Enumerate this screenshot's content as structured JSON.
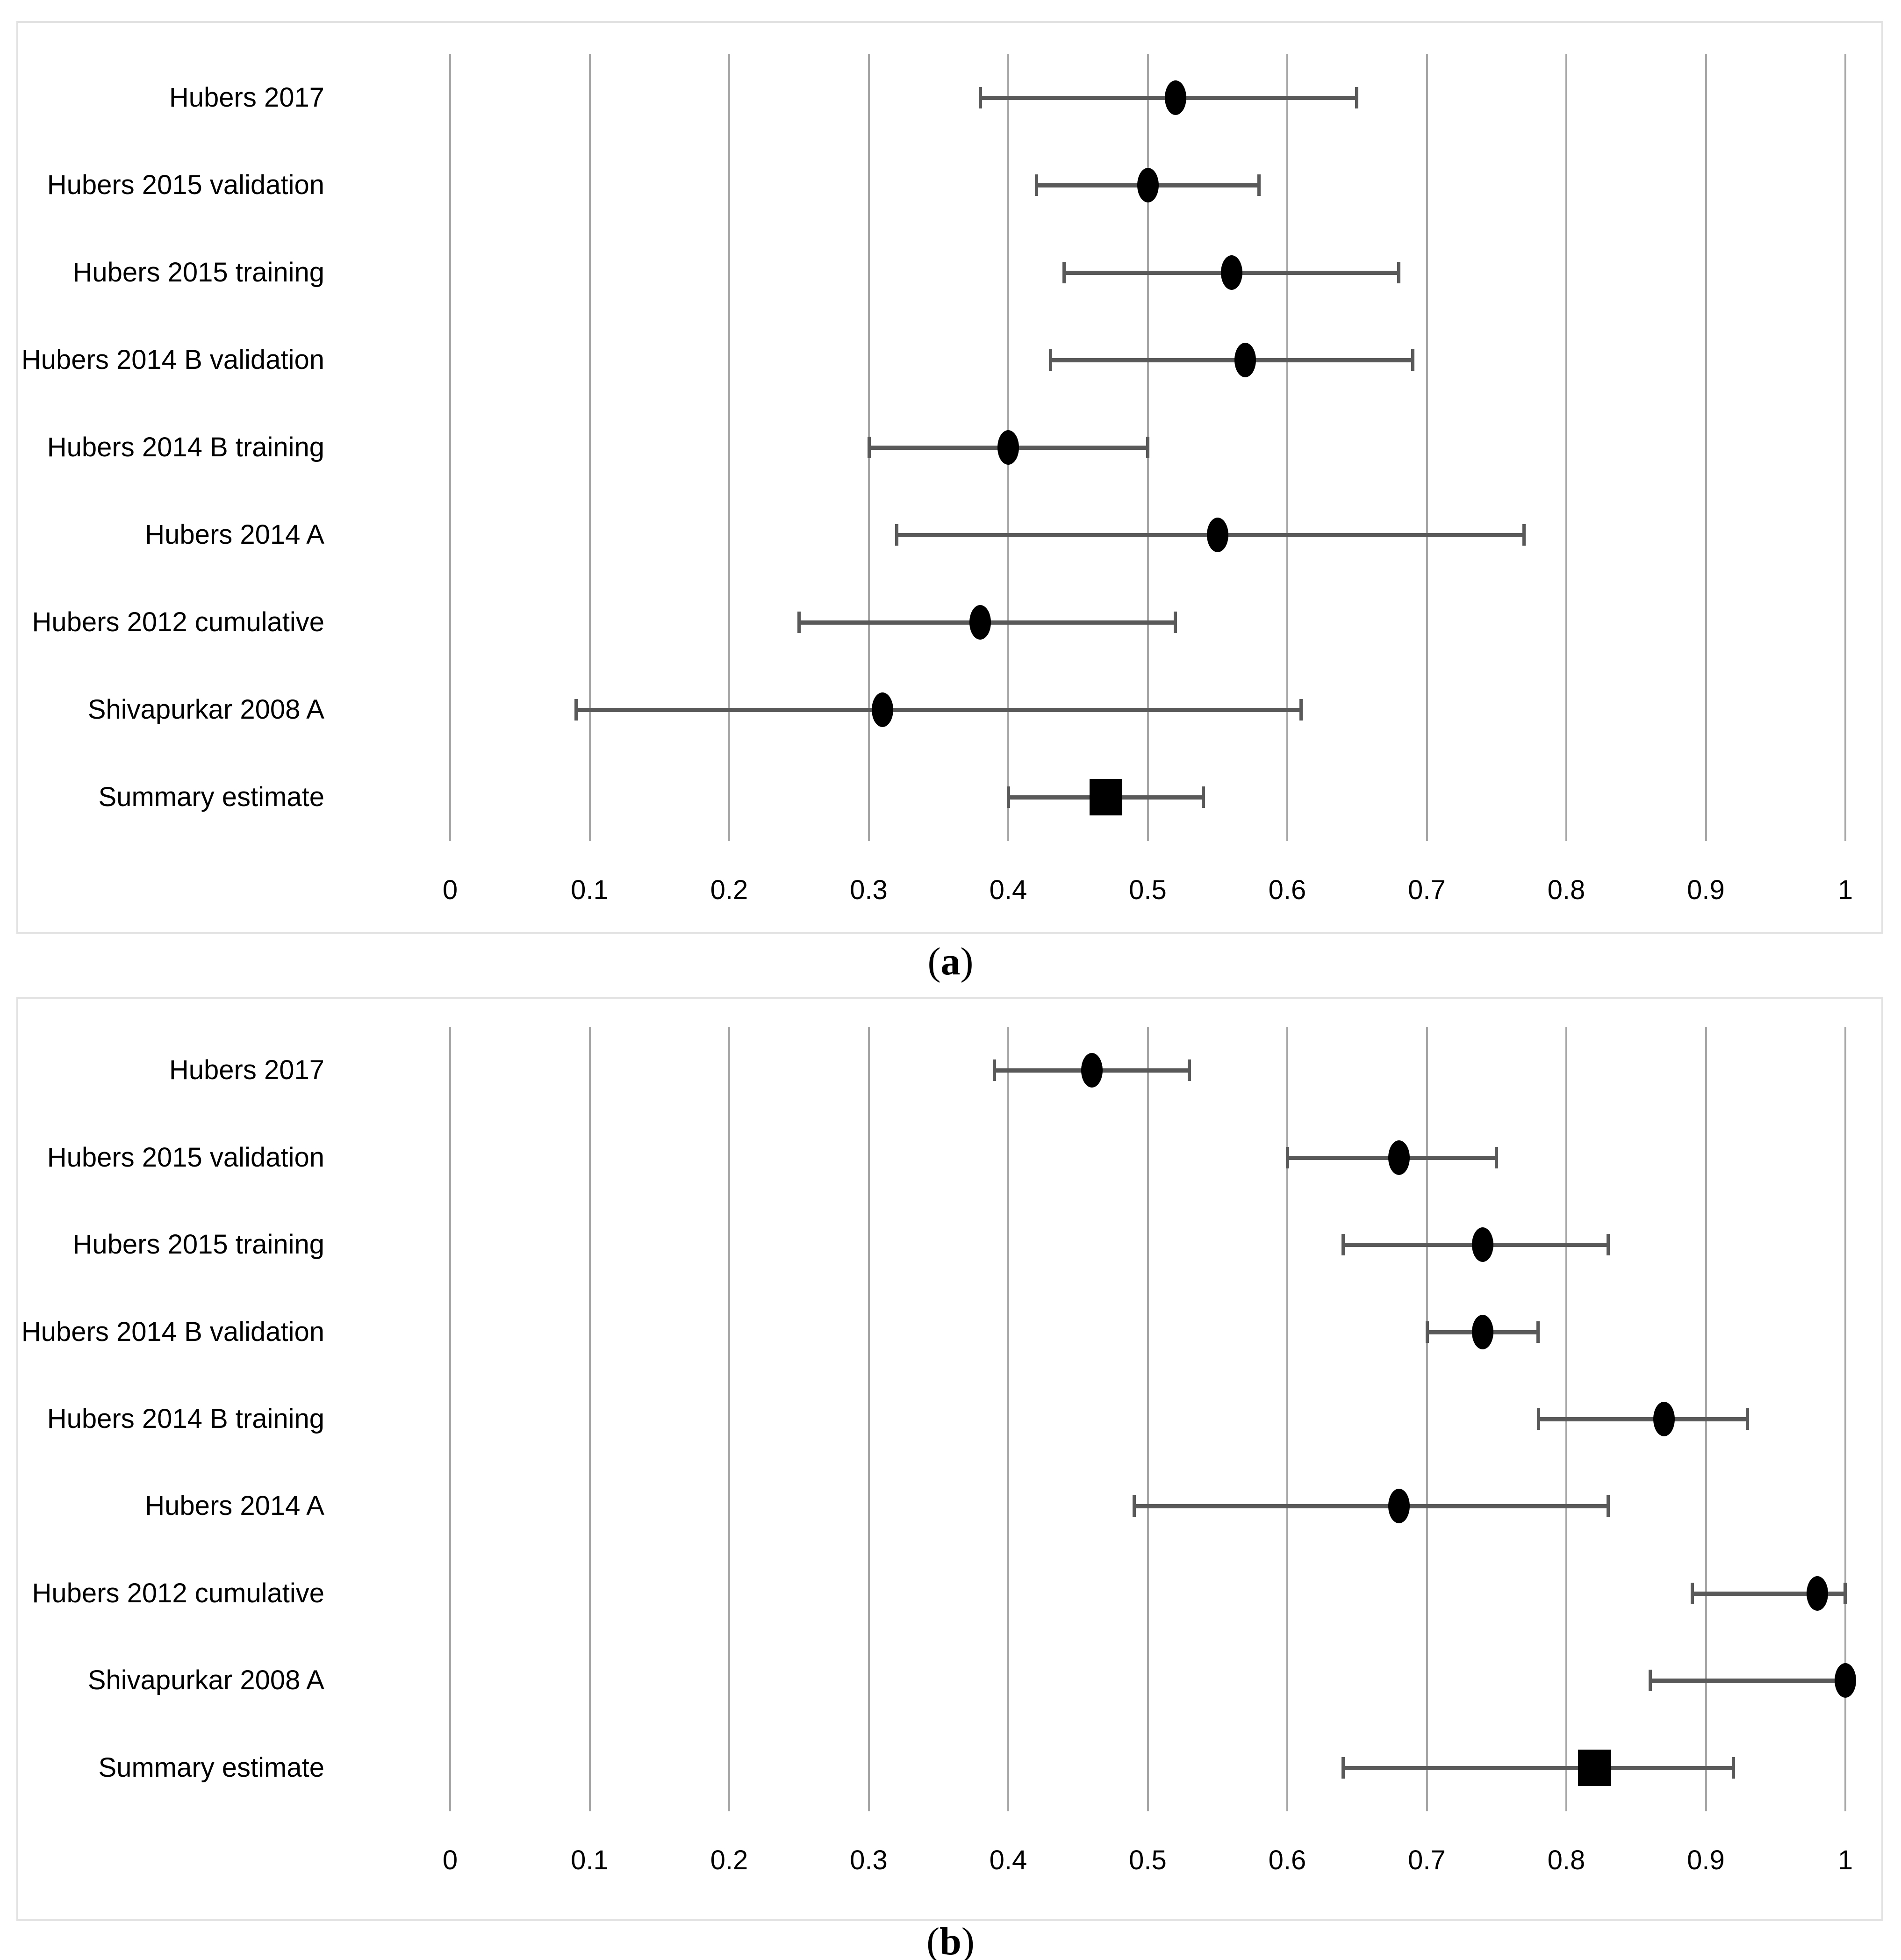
{
  "figure": {
    "background": "#ffffff",
    "panel_border_color": "#e2e2e2",
    "gridline_color": "#a6a6a6",
    "error_bar_color": "#595959",
    "marker_color": "#000000",
    "text_color": "#000000",
    "captions": [
      {
        "open": "(",
        "letter": "a",
        "close": ")"
      },
      {
        "open": "(",
        "letter": "b",
        "close": ")"
      }
    ]
  },
  "chart_data": [
    {
      "type": "scatter",
      "subtype": "forest-plot",
      "panel": "a",
      "title": "",
      "xlabel": "",
      "ylabel": "",
      "xlim": [
        0,
        1
      ],
      "grid": "vertical-gridlines",
      "legend": "none",
      "xtick_labels": [
        "0",
        "0.1",
        "0.2",
        "0.3",
        "0.4",
        "0.5",
        "0.6",
        "0.7",
        "0.8",
        "0.9",
        "1"
      ],
      "xtick_values": [
        0,
        0.1,
        0.2,
        0.3,
        0.4,
        0.5,
        0.6,
        0.7,
        0.8,
        0.9,
        1
      ],
      "categories": [
        "Hubers 2017",
        "Hubers 2015 validation",
        "Hubers 2015 training",
        "Hubers 2014 B validation",
        "Hubers 2014 B training",
        "Hubers 2014 A",
        "Hubers 2012 cumulative",
        "Shivapurkar 2008 A",
        "Summary estimate"
      ],
      "series": [
        {
          "name": "estimate",
          "values": [
            0.52,
            0.5,
            0.56,
            0.57,
            0.4,
            0.55,
            0.38,
            0.31,
            0.47
          ]
        },
        {
          "name": "ci_low",
          "values": [
            0.38,
            0.42,
            0.44,
            0.43,
            0.3,
            0.32,
            0.25,
            0.09,
            0.4
          ]
        },
        {
          "name": "ci_high",
          "values": [
            0.65,
            0.58,
            0.68,
            0.69,
            0.5,
            0.77,
            0.52,
            0.61,
            0.54
          ]
        }
      ],
      "marker_types": [
        "circle",
        "circle",
        "circle",
        "circle",
        "circle",
        "circle",
        "circle",
        "circle",
        "square"
      ]
    },
    {
      "type": "scatter",
      "subtype": "forest-plot",
      "panel": "b",
      "title": "",
      "xlabel": "",
      "ylabel": "",
      "xlim": [
        0,
        1
      ],
      "grid": "vertical-gridlines",
      "legend": "none",
      "xtick_labels": [
        "0",
        "0.1",
        "0.2",
        "0.3",
        "0.4",
        "0.5",
        "0.6",
        "0.7",
        "0.8",
        "0.9",
        "1"
      ],
      "xtick_values": [
        0,
        0.1,
        0.2,
        0.3,
        0.4,
        0.5,
        0.6,
        0.7,
        0.8,
        0.9,
        1
      ],
      "categories": [
        "Hubers 2017",
        "Hubers 2015 validation",
        "Hubers 2015 training",
        "Hubers 2014 B validation",
        "Hubers 2014 B training",
        "Hubers 2014 A",
        "Hubers 2012 cumulative",
        "Shivapurkar 2008 A",
        "Summary estimate"
      ],
      "series": [
        {
          "name": "estimate",
          "values": [
            0.46,
            0.68,
            0.74,
            0.74,
            0.87,
            0.68,
            0.98,
            1.0,
            0.82
          ]
        },
        {
          "name": "ci_low",
          "values": [
            0.39,
            0.6,
            0.64,
            0.7,
            0.78,
            0.49,
            0.89,
            0.86,
            0.64
          ]
        },
        {
          "name": "ci_high",
          "values": [
            0.53,
            0.75,
            0.83,
            0.78,
            0.93,
            0.83,
            1.0,
            1.0,
            0.92
          ]
        }
      ],
      "marker_types": [
        "circle",
        "circle",
        "circle",
        "circle",
        "circle",
        "circle",
        "circle",
        "circle",
        "square"
      ]
    }
  ]
}
